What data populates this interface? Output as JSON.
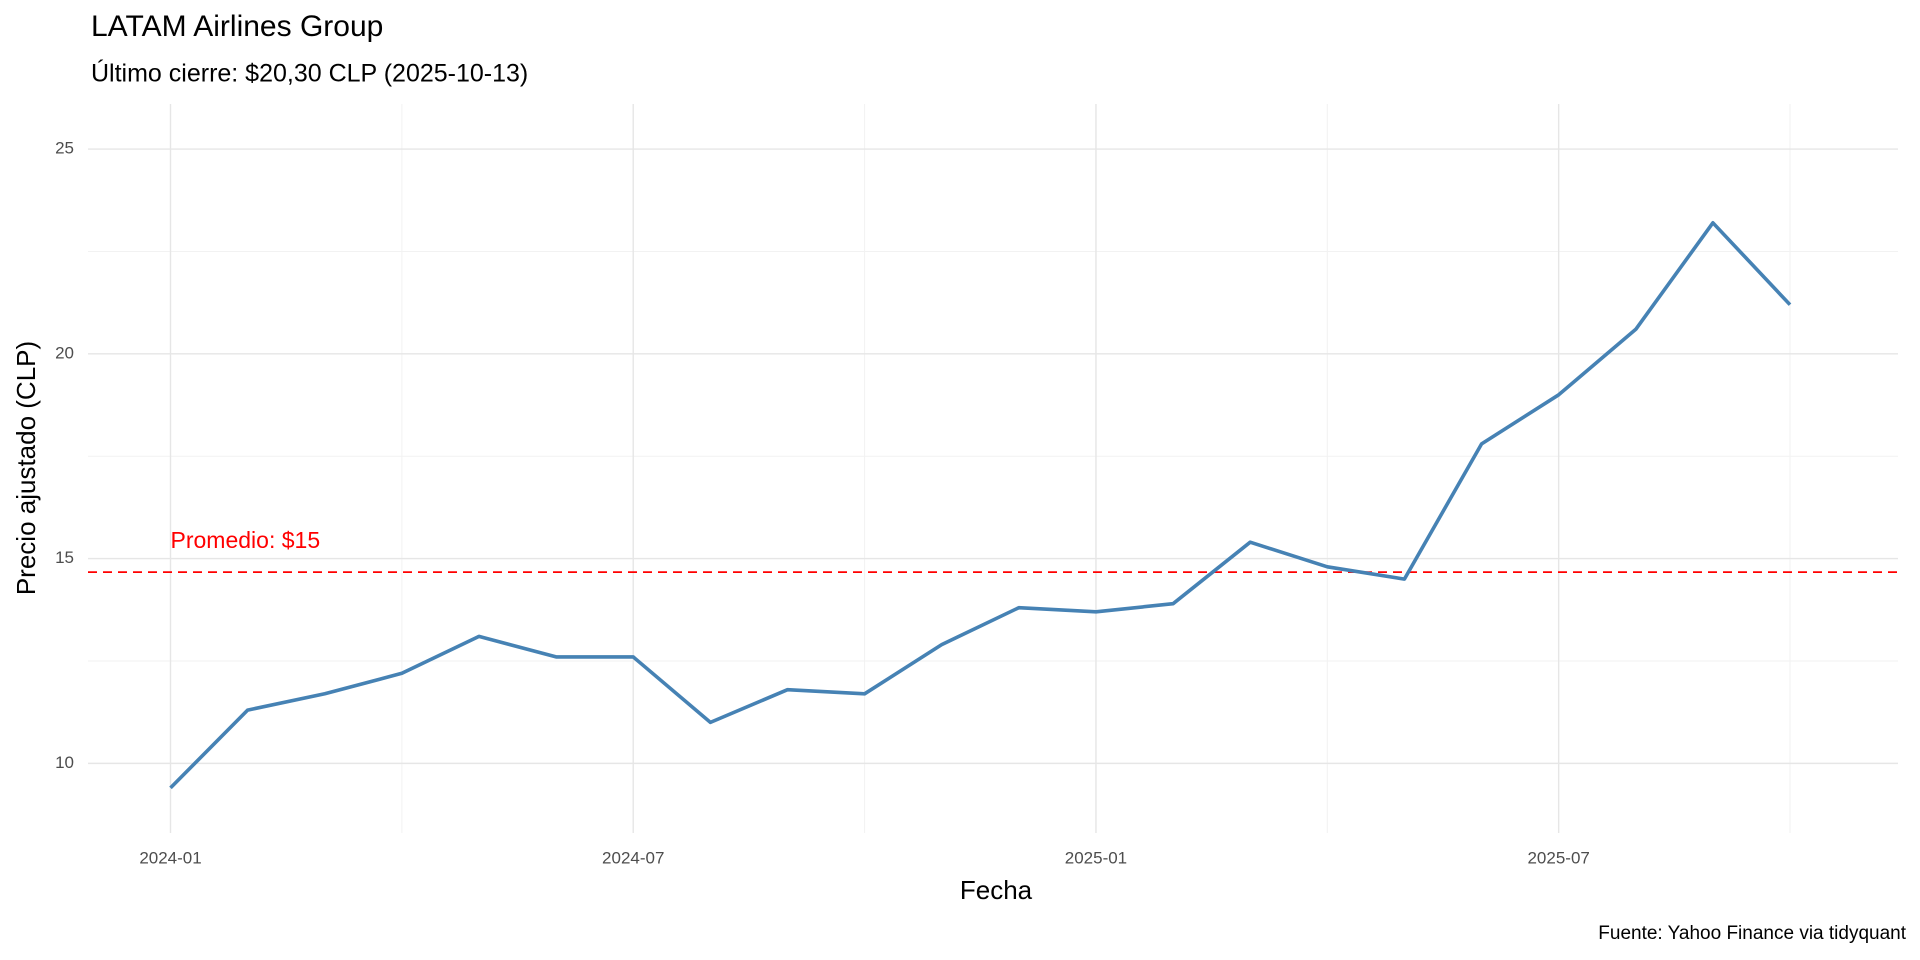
{
  "chart_data": {
    "type": "line",
    "title": "LATAM Airlines Group",
    "subtitle": "Último cierre: $20,30 CLP (2025-10-13)",
    "x_label": "Fecha",
    "y_label": "Precio ajustado (CLP)",
    "caption": "Fuente: Yahoo Finance via tidyquant",
    "x": [
      "2024-01",
      "2024-02",
      "2024-03",
      "2024-04",
      "2024-05",
      "2024-06",
      "2024-07",
      "2024-08",
      "2024-09",
      "2024-10",
      "2024-11",
      "2024-12",
      "2025-01",
      "2025-02",
      "2025-03",
      "2025-04",
      "2025-05",
      "2025-06",
      "2025-07",
      "2025-08",
      "2025-09",
      "2025-10"
    ],
    "series": [
      {
        "name": "Precio ajustado",
        "color": "#4682b4",
        "values": [
          9.4,
          11.3,
          11.7,
          12.2,
          13.1,
          12.6,
          12.6,
          11.0,
          11.8,
          11.7,
          12.9,
          13.8,
          13.7,
          13.9,
          15.4,
          14.8,
          14.5,
          17.8,
          19.0,
          20.6,
          23.2,
          21.2
        ]
      }
    ],
    "mean_line": {
      "value": 14.67,
      "label": "Promedio: $15",
      "color": "#ff0000"
    },
    "xlim": [
      "2024-01",
      "2025-10"
    ],
    "xticks": [
      "2024-01",
      "2024-07",
      "2025-01",
      "2025-07"
    ],
    "ylim": [
      8.3,
      26.1
    ],
    "yticks": [
      10,
      15,
      20,
      25
    ],
    "grid": true
  }
}
